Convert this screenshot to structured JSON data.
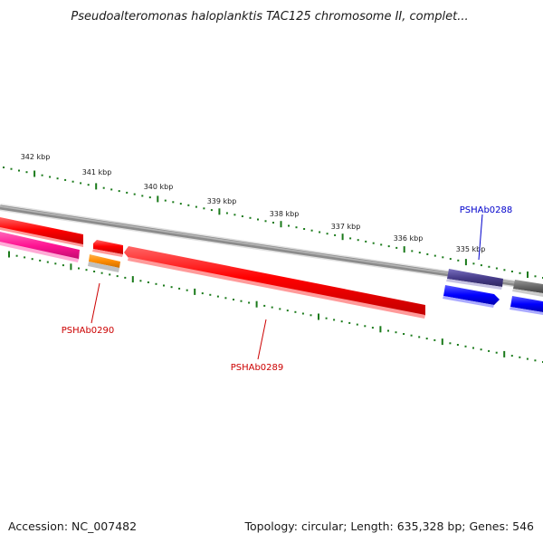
{
  "title": "Pseudoalteromonas haloplanktis TAC125 chromosome II, complet...",
  "accession": "Accession: NC_007482",
  "summary": "Topology: circular; Length: 635,328 bp; Genes: 546",
  "scale_labels": [
    "342 kbp",
    "341 kbp",
    "340 kbp",
    "339 kbp",
    "338 kbp",
    "337 kbp",
    "336 kbp",
    "335 kbp"
  ],
  "gene_labels": [
    {
      "text": "PSHAb0288",
      "color": "#0000cc"
    },
    {
      "text": "PSHAb0289",
      "color": "#cc0000"
    },
    {
      "text": "PSHAb0290",
      "color": "#cc0000"
    }
  ],
  "colors": {
    "backbone": "#8c8c8c",
    "tick_mark": "#1a7a1a",
    "cds_red": "#ff0000",
    "cds_pink": "#ff1493",
    "cds_orange": "#ff8c00",
    "cds_navy": "#483d8b",
    "cds_blue": "#0000ff",
    "cds_grey": "#696969"
  }
}
